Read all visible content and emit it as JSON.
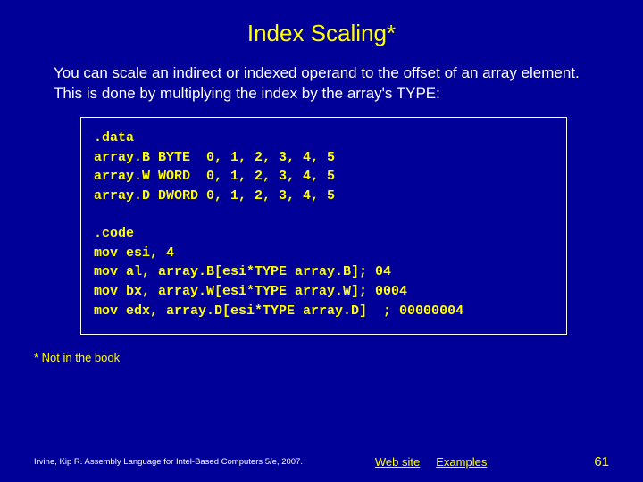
{
  "title": "Index Scaling*",
  "body": "You can scale an indirect or indexed operand to the offset of an array element. This is done by multiplying the index by the array's TYPE:",
  "code_block_1": ".data\narray.B BYTE  0, 1, 2, 3, 4, 5\narray.W WORD  0, 1, 2, 3, 4, 5\narray.D DWORD 0, 1, 2, 3, 4, 5",
  "code_block_2": ".code\nmov esi, 4\nmov al, array.B[esi*TYPE array.B]; 04\nmov bx, array.W[esi*TYPE array.W]; 0004\nmov edx, array.D[esi*TYPE array.D]  ; 00000004",
  "footnote": "* Not in the book",
  "footer": {
    "citation": "Irvine, Kip R. Assembly Language for Intel-Based Computers 5/e, 2007.",
    "link_web": "Web site",
    "link_examples": "Examples",
    "page": "61"
  },
  "colors": {
    "background": "#000099",
    "title": "#ffff00",
    "body_text": "#ffffff",
    "code_text": "#ffff00",
    "box_border": "#ffffff",
    "footnote": "#ffff00",
    "footer_text": "#ffffff",
    "link": "#ffff00",
    "page_num": "#ffff00"
  }
}
